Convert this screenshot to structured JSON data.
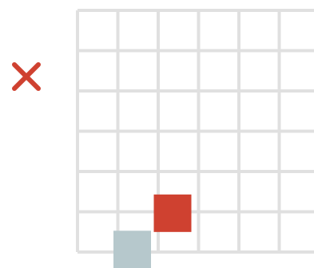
{
  "game": {
    "close_icon": "close-x-icon",
    "colors": {
      "close": "#cf4130",
      "grid_line": "#e0e0e0",
      "red_block": "#cf4130",
      "gray_block": "#b6c8cc",
      "background": "#ffffff"
    },
    "grid": {
      "columns": 6,
      "rows": 6
    },
    "blocks": [
      {
        "name": "red-block",
        "col": 2,
        "row": 4.65,
        "color": "#cf4130"
      },
      {
        "name": "gray-block",
        "col": 1,
        "row": 5.55,
        "color": "#b6c8cc"
      }
    ]
  }
}
